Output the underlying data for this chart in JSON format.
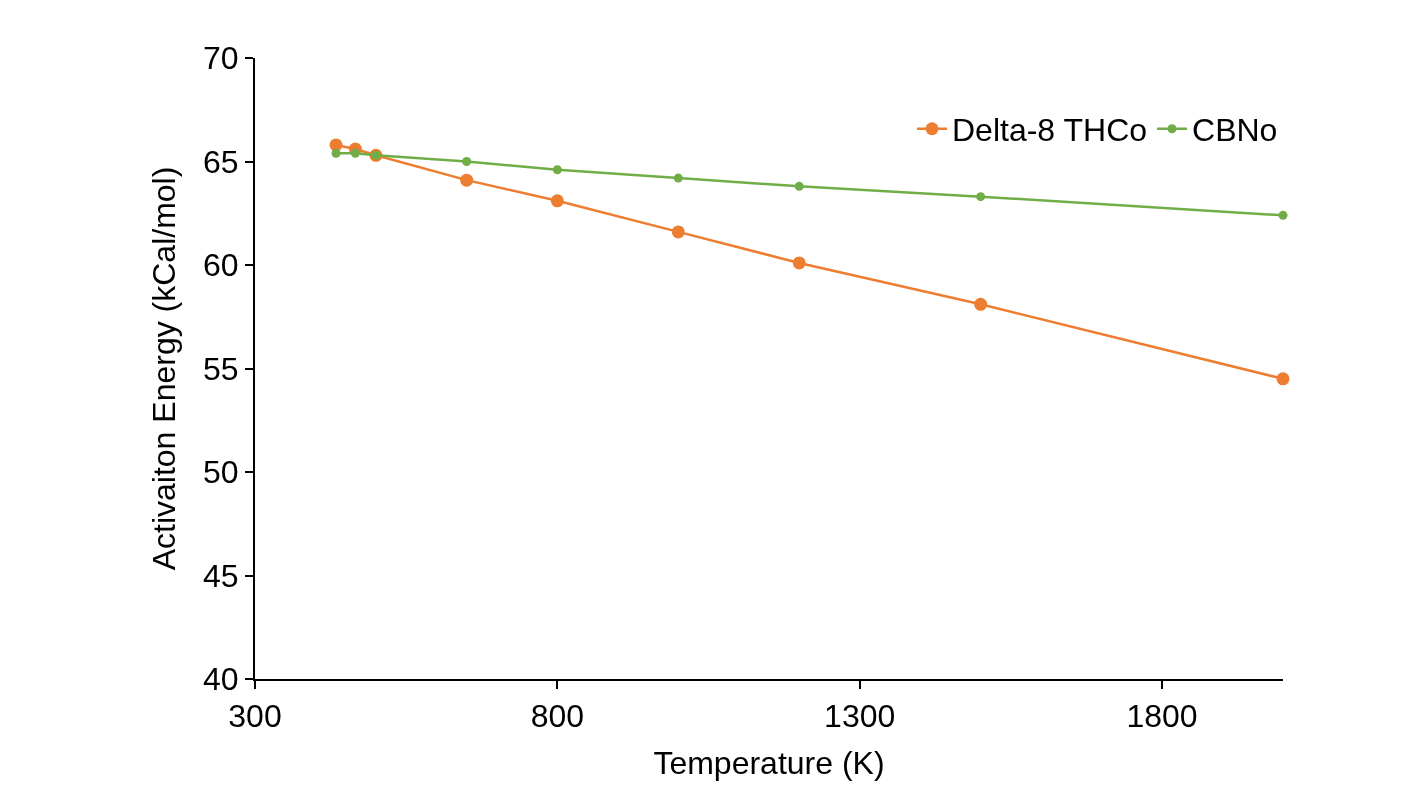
{
  "chart_data": {
    "type": "line",
    "xlabel": "Temperature (K)",
    "ylabel": "Activaiton Energy (kCal/mol)",
    "xlim": [
      300,
      2000
    ],
    "xticks": [
      300,
      800,
      1300,
      1800
    ],
    "ylim": [
      40,
      70
    ],
    "yticks": [
      40,
      45,
      50,
      55,
      60,
      65,
      70
    ],
    "grid": false,
    "legend": "top right",
    "marker": "circle",
    "line_style": "solid",
    "series": [
      {
        "name": "Delta-8 THCo",
        "color": "#ed7d31",
        "x": [
          434,
          466,
          500,
          650,
          800,
          1000,
          1200,
          1500,
          2000
        ],
        "values": [
          65.8,
          65.6,
          65.3,
          64.1,
          63.1,
          61.6,
          60.1,
          58.1,
          54.5
        ]
      },
      {
        "name": "CBNo",
        "color": "#70ad47",
        "x": [
          434,
          466,
          500,
          650,
          800,
          1000,
          1200,
          1500,
          2000
        ],
        "values": [
          65.4,
          65.4,
          65.3,
          65.0,
          64.6,
          64.2,
          63.8,
          63.3,
          62.4
        ]
      }
    ]
  }
}
